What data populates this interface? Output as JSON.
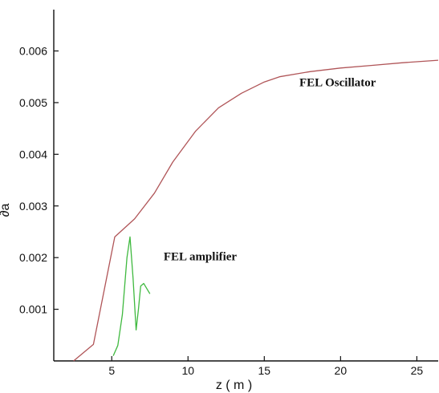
{
  "chart_data": {
    "type": "line",
    "title": "",
    "xlabel": "z ( m )",
    "ylabel": "∂a",
    "xlim": [
      1.2,
      26.4
    ],
    "ylim": [
      0,
      0.0068
    ],
    "x_ticks": [
      5,
      10,
      15,
      20,
      25
    ],
    "x_tick_labels": [
      "5",
      "10",
      "15",
      "20",
      "25"
    ],
    "y_ticks": [
      0.001,
      0.002,
      0.003,
      0.004,
      0.005,
      0.006
    ],
    "y_tick_labels": [
      "0.001",
      "0.002",
      "0.003",
      "0.004",
      "0.005",
      "0.006"
    ],
    "grid": false,
    "series": [
      {
        "name": "FEL Oscillator",
        "color": "#b05558",
        "x": [
          2.5,
          3.8,
          5.2,
          6.5,
          7.8,
          9.0,
          10.5,
          12.0,
          13.5,
          15.0,
          16.0,
          18.0,
          20.0,
          22.0,
          24.0,
          26.4
        ],
        "y": [
          0.0,
          0.00032,
          0.0024,
          0.00275,
          0.00325,
          0.00385,
          0.00445,
          0.0049,
          0.00518,
          0.0054,
          0.0055,
          0.0056,
          0.00567,
          0.00572,
          0.00577,
          0.00582
        ]
      },
      {
        "name": "FEL amplifier",
        "color": "#3fb93f",
        "x": [
          5.1,
          5.4,
          5.7,
          6.0,
          6.2,
          6.4,
          6.6,
          6.75,
          6.9,
          7.1,
          7.3,
          7.5
        ],
        "y": [
          0.0001,
          0.0003,
          0.0009,
          0.002,
          0.0024,
          0.0016,
          0.0006,
          0.001,
          0.00145,
          0.0015,
          0.0014,
          0.0013
        ]
      }
    ],
    "annotations": [
      {
        "text": "FEL Oscillator",
        "x": 17.3,
        "y": 0.00532
      },
      {
        "text": "FEL amplifier",
        "x": 8.4,
        "y": 0.00195
      }
    ]
  }
}
